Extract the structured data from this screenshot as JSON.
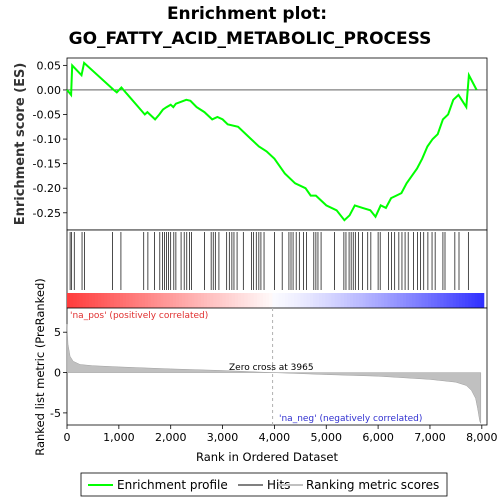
{
  "chart_data": {
    "type": "line",
    "title_line1": "Enrichment plot:",
    "title_line2": "GO_FATTY_ACID_METABOLIC_PROCESS",
    "top_panel": {
      "ylabel": "Enrichment score (ES)",
      "ylim": [
        -0.285,
        0.065
      ],
      "yticks": [
        "0.05",
        "0.00",
        "-0.05",
        "-0.10",
        "-0.15",
        "-0.20",
        "-0.25"
      ],
      "ytick_values": [
        0.05,
        0.0,
        -0.05,
        -0.1,
        -0.15,
        -0.2,
        -0.25
      ],
      "series_name": "Enrichment profile",
      "color": "#00ff00",
      "x": [
        0,
        80,
        100,
        280,
        330,
        900,
        960,
        1050,
        1500,
        1550,
        1700,
        1780,
        1850,
        1920,
        2000,
        2050,
        2100,
        2180,
        2300,
        2380,
        2500,
        2650,
        2800,
        2900,
        3000,
        3100,
        3300,
        3550,
        3700,
        3850,
        4000,
        4200,
        4400,
        4600,
        4700,
        4800,
        5000,
        5200,
        5350,
        5450,
        5550,
        5700,
        5850,
        5950,
        6050,
        6150,
        6250,
        6350,
        6450,
        6550,
        6650,
        6750,
        6850,
        6950,
        7050,
        7150,
        7250,
        7350,
        7450,
        7550,
        7700,
        7750,
        7900
      ],
      "y": [
        0.0,
        -0.01,
        0.05,
        0.03,
        0.055,
        0.0,
        -0.005,
        0.005,
        -0.05,
        -0.045,
        -0.06,
        -0.05,
        -0.04,
        -0.035,
        -0.03,
        -0.035,
        -0.028,
        -0.025,
        -0.02,
        -0.022,
        -0.035,
        -0.045,
        -0.06,
        -0.055,
        -0.06,
        -0.07,
        -0.075,
        -0.1,
        -0.115,
        -0.125,
        -0.14,
        -0.17,
        -0.19,
        -0.2,
        -0.215,
        -0.215,
        -0.235,
        -0.245,
        -0.265,
        -0.255,
        -0.235,
        -0.24,
        -0.245,
        -0.258,
        -0.235,
        -0.24,
        -0.22,
        -0.215,
        -0.21,
        -0.19,
        -0.175,
        -0.16,
        -0.14,
        -0.115,
        -0.1,
        -0.09,
        -0.06,
        -0.05,
        -0.02,
        -0.01,
        -0.035,
        0.03,
        0.0
      ]
    },
    "hits": [
      60,
      90,
      140,
      290,
      340,
      880,
      1040,
      1480,
      1560,
      1690,
      1790,
      1840,
      1880,
      1920,
      1960,
      2000,
      2060,
      2100,
      2200,
      2260,
      2310,
      2360,
      2400,
      2650,
      2780,
      2820,
      2860,
      2930,
      3080,
      3130,
      3180,
      3220,
      3280,
      3400,
      3560,
      3600,
      3650,
      3700,
      3740,
      3800,
      4000,
      4150,
      4280,
      4320,
      4360,
      4420,
      4480,
      4560,
      4620,
      4760,
      4800,
      4840,
      4900,
      5160,
      5340,
      5380,
      5440,
      5480,
      5520,
      5560,
      5620,
      5700,
      5800,
      5860,
      6000,
      6040,
      6200,
      6260,
      6320,
      6400,
      6460,
      6520,
      6580,
      6680,
      6760,
      6820,
      6880,
      6960,
      7040,
      7100,
      7250,
      7290,
      7480,
      7560,
      7740
    ],
    "bottom_panel": {
      "ylabel": "Ranked list metric (PreRanked)",
      "xlabel": "Rank in Ordered Dataset",
      "ylim": [
        -6.5,
        8
      ],
      "yticks": [
        "5",
        "0",
        "-5"
      ],
      "ytick_values": [
        5,
        0,
        -5
      ],
      "xticks": [
        "0",
        "1,000",
        "2,000",
        "3,000",
        "4,000",
        "5,000",
        "6,000",
        "7,000",
        "8,000"
      ],
      "xtick_values": [
        0,
        1000,
        2000,
        3000,
        4000,
        5000,
        6000,
        7000,
        8000
      ],
      "xlim": [
        0,
        8100
      ],
      "metric_x": [
        0,
        20,
        60,
        120,
        250,
        500,
        1000,
        2000,
        3000,
        3965,
        5000,
        6000,
        7000,
        7500,
        7700,
        7800,
        7880,
        7920,
        7960,
        7980
      ],
      "metric_y": [
        6.0,
        3.5,
        2.0,
        1.4,
        1.0,
        0.85,
        0.7,
        0.45,
        0.25,
        0.0,
        -0.25,
        -0.45,
        -0.85,
        -1.2,
        -1.6,
        -2.2,
        -3.2,
        -4.5,
        -6.0,
        -6.3
      ],
      "zero_cross_label": "Zero cross at 3965",
      "zero_cross_value": 3965,
      "pos_label": "'na_pos' (positively correlated)",
      "neg_label": "'na_neg' (negatively correlated)"
    },
    "legend": {
      "placement": "bottom",
      "items": [
        {
          "label": "Enrichment profile",
          "color": "#00ff00"
        },
        {
          "label": "Hits",
          "color": "#808080"
        },
        {
          "label": "Ranking metric scores",
          "color": "#c0c0c0"
        }
      ]
    }
  }
}
